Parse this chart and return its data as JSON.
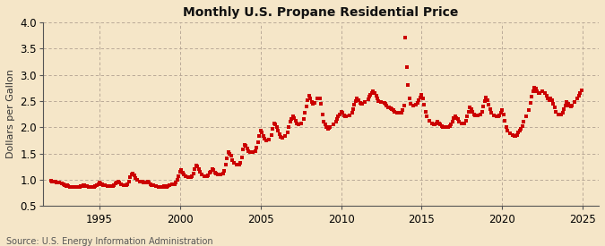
{
  "title": "Monthly U.S. Propane Residential Price",
  "ylabel": "Dollars per Gallon",
  "source": "Source: U.S. Energy Information Administration",
  "outer_bg_color": "#f5e6c8",
  "plot_bg_color": "#f5e6c8",
  "line_color": "#cc0000",
  "ylim": [
    0.5,
    4.0
  ],
  "yticks": [
    0.5,
    1.0,
    1.5,
    2.0,
    2.5,
    3.0,
    3.5,
    4.0
  ],
  "xlim_start": 1991.5,
  "xlim_end": 2026.0,
  "xticks": [
    1995,
    2000,
    2005,
    2010,
    2015,
    2020,
    2025
  ],
  "data": [
    [
      1992.0,
      0.98
    ],
    [
      1992.08,
      0.96
    ],
    [
      1992.17,
      0.97
    ],
    [
      1992.25,
      0.96
    ],
    [
      1992.33,
      0.95
    ],
    [
      1992.5,
      0.95
    ],
    [
      1992.67,
      0.93
    ],
    [
      1992.75,
      0.91
    ],
    [
      1992.83,
      0.9
    ],
    [
      1992.92,
      0.88
    ],
    [
      1993.0,
      0.9
    ],
    [
      1993.08,
      0.88
    ],
    [
      1993.17,
      0.87
    ],
    [
      1993.25,
      0.87
    ],
    [
      1993.33,
      0.87
    ],
    [
      1993.5,
      0.87
    ],
    [
      1993.67,
      0.87
    ],
    [
      1993.75,
      0.87
    ],
    [
      1993.83,
      0.88
    ],
    [
      1993.92,
      0.88
    ],
    [
      1994.0,
      0.9
    ],
    [
      1994.08,
      0.89
    ],
    [
      1994.17,
      0.88
    ],
    [
      1994.25,
      0.88
    ],
    [
      1994.33,
      0.87
    ],
    [
      1994.5,
      0.87
    ],
    [
      1994.67,
      0.87
    ],
    [
      1994.75,
      0.88
    ],
    [
      1994.83,
      0.9
    ],
    [
      1994.92,
      0.92
    ],
    [
      1995.0,
      0.94
    ],
    [
      1995.08,
      0.93
    ],
    [
      1995.17,
      0.91
    ],
    [
      1995.25,
      0.9
    ],
    [
      1995.33,
      0.89
    ],
    [
      1995.5,
      0.88
    ],
    [
      1995.67,
      0.88
    ],
    [
      1995.75,
      0.88
    ],
    [
      1995.83,
      0.88
    ],
    [
      1995.92,
      0.89
    ],
    [
      1996.0,
      0.93
    ],
    [
      1996.08,
      0.95
    ],
    [
      1996.17,
      0.96
    ],
    [
      1996.25,
      0.95
    ],
    [
      1996.33,
      0.92
    ],
    [
      1996.5,
      0.9
    ],
    [
      1996.67,
      0.9
    ],
    [
      1996.75,
      0.92
    ],
    [
      1996.83,
      0.97
    ],
    [
      1996.92,
      1.05
    ],
    [
      1997.0,
      1.1
    ],
    [
      1997.08,
      1.12
    ],
    [
      1997.17,
      1.08
    ],
    [
      1997.25,
      1.04
    ],
    [
      1997.33,
      1.0
    ],
    [
      1997.5,
      0.97
    ],
    [
      1997.67,
      0.96
    ],
    [
      1997.75,
      0.95
    ],
    [
      1997.83,
      0.95
    ],
    [
      1997.92,
      0.95
    ],
    [
      1998.0,
      0.96
    ],
    [
      1998.08,
      0.94
    ],
    [
      1998.17,
      0.92
    ],
    [
      1998.25,
      0.9
    ],
    [
      1998.33,
      0.89
    ],
    [
      1998.5,
      0.88
    ],
    [
      1998.67,
      0.87
    ],
    [
      1998.75,
      0.87
    ],
    [
      1998.83,
      0.87
    ],
    [
      1998.92,
      0.87
    ],
    [
      1999.0,
      0.88
    ],
    [
      1999.08,
      0.87
    ],
    [
      1999.17,
      0.86
    ],
    [
      1999.25,
      0.88
    ],
    [
      1999.33,
      0.9
    ],
    [
      1999.5,
      0.91
    ],
    [
      1999.67,
      0.92
    ],
    [
      1999.75,
      0.95
    ],
    [
      1999.83,
      1.0
    ],
    [
      1999.92,
      1.07
    ],
    [
      2000.0,
      1.15
    ],
    [
      2000.08,
      1.18
    ],
    [
      2000.17,
      1.14
    ],
    [
      2000.25,
      1.1
    ],
    [
      2000.33,
      1.07
    ],
    [
      2000.5,
      1.05
    ],
    [
      2000.67,
      1.05
    ],
    [
      2000.75,
      1.07
    ],
    [
      2000.83,
      1.12
    ],
    [
      2000.92,
      1.2
    ],
    [
      2001.0,
      1.27
    ],
    [
      2001.08,
      1.25
    ],
    [
      2001.17,
      1.2
    ],
    [
      2001.25,
      1.15
    ],
    [
      2001.33,
      1.1
    ],
    [
      2001.5,
      1.07
    ],
    [
      2001.67,
      1.07
    ],
    [
      2001.75,
      1.09
    ],
    [
      2001.83,
      1.13
    ],
    [
      2001.92,
      1.15
    ],
    [
      2002.0,
      1.2
    ],
    [
      2002.08,
      1.18
    ],
    [
      2002.17,
      1.14
    ],
    [
      2002.25,
      1.12
    ],
    [
      2002.33,
      1.1
    ],
    [
      2002.5,
      1.1
    ],
    [
      2002.67,
      1.12
    ],
    [
      2002.75,
      1.17
    ],
    [
      2002.83,
      1.28
    ],
    [
      2002.92,
      1.4
    ],
    [
      2003.0,
      1.52
    ],
    [
      2003.08,
      1.5
    ],
    [
      2003.17,
      1.45
    ],
    [
      2003.25,
      1.38
    ],
    [
      2003.33,
      1.32
    ],
    [
      2003.5,
      1.28
    ],
    [
      2003.67,
      1.28
    ],
    [
      2003.75,
      1.32
    ],
    [
      2003.83,
      1.42
    ],
    [
      2003.92,
      1.57
    ],
    [
      2004.0,
      1.67
    ],
    [
      2004.08,
      1.65
    ],
    [
      2004.17,
      1.6
    ],
    [
      2004.25,
      1.55
    ],
    [
      2004.33,
      1.52
    ],
    [
      2004.5,
      1.52
    ],
    [
      2004.67,
      1.55
    ],
    [
      2004.75,
      1.62
    ],
    [
      2004.83,
      1.72
    ],
    [
      2004.92,
      1.83
    ],
    [
      2005.0,
      1.94
    ],
    [
      2005.08,
      1.9
    ],
    [
      2005.17,
      1.83
    ],
    [
      2005.25,
      1.78
    ],
    [
      2005.33,
      1.75
    ],
    [
      2005.5,
      1.77
    ],
    [
      2005.67,
      1.85
    ],
    [
      2005.75,
      1.97
    ],
    [
      2005.83,
      2.07
    ],
    [
      2005.92,
      2.05
    ],
    [
      2006.0,
      2.0
    ],
    [
      2006.08,
      1.93
    ],
    [
      2006.17,
      1.87
    ],
    [
      2006.25,
      1.82
    ],
    [
      2006.33,
      1.8
    ],
    [
      2006.5,
      1.83
    ],
    [
      2006.67,
      1.9
    ],
    [
      2006.75,
      2.0
    ],
    [
      2006.83,
      2.1
    ],
    [
      2006.92,
      2.15
    ],
    [
      2007.0,
      2.2
    ],
    [
      2007.08,
      2.17
    ],
    [
      2007.17,
      2.12
    ],
    [
      2007.25,
      2.07
    ],
    [
      2007.33,
      2.05
    ],
    [
      2007.5,
      2.07
    ],
    [
      2007.67,
      2.15
    ],
    [
      2007.75,
      2.27
    ],
    [
      2007.83,
      2.4
    ],
    [
      2007.92,
      2.52
    ],
    [
      2008.0,
      2.6
    ],
    [
      2008.08,
      2.55
    ],
    [
      2008.17,
      2.48
    ],
    [
      2008.25,
      2.45
    ],
    [
      2008.33,
      2.47
    ],
    [
      2008.5,
      2.55
    ],
    [
      2008.67,
      2.55
    ],
    [
      2008.75,
      2.45
    ],
    [
      2008.83,
      2.25
    ],
    [
      2008.92,
      2.1
    ],
    [
      2009.0,
      2.05
    ],
    [
      2009.08,
      2.0
    ],
    [
      2009.17,
      1.97
    ],
    [
      2009.25,
      1.98
    ],
    [
      2009.33,
      2.0
    ],
    [
      2009.5,
      2.05
    ],
    [
      2009.67,
      2.1
    ],
    [
      2009.75,
      2.15
    ],
    [
      2009.83,
      2.2
    ],
    [
      2009.92,
      2.25
    ],
    [
      2010.0,
      2.3
    ],
    [
      2010.08,
      2.28
    ],
    [
      2010.17,
      2.23
    ],
    [
      2010.25,
      2.2
    ],
    [
      2010.33,
      2.2
    ],
    [
      2010.5,
      2.22
    ],
    [
      2010.67,
      2.27
    ],
    [
      2010.75,
      2.35
    ],
    [
      2010.83,
      2.43
    ],
    [
      2010.92,
      2.5
    ],
    [
      2011.0,
      2.55
    ],
    [
      2011.08,
      2.52
    ],
    [
      2011.17,
      2.47
    ],
    [
      2011.25,
      2.45
    ],
    [
      2011.33,
      2.45
    ],
    [
      2011.5,
      2.48
    ],
    [
      2011.67,
      2.53
    ],
    [
      2011.75,
      2.58
    ],
    [
      2011.83,
      2.62
    ],
    [
      2011.92,
      2.65
    ],
    [
      2012.0,
      2.68
    ],
    [
      2012.08,
      2.65
    ],
    [
      2012.17,
      2.6
    ],
    [
      2012.25,
      2.55
    ],
    [
      2012.33,
      2.5
    ],
    [
      2012.5,
      2.48
    ],
    [
      2012.67,
      2.47
    ],
    [
      2012.75,
      2.45
    ],
    [
      2012.83,
      2.42
    ],
    [
      2012.92,
      2.38
    ],
    [
      2013.0,
      2.38
    ],
    [
      2013.08,
      2.37
    ],
    [
      2013.17,
      2.35
    ],
    [
      2013.25,
      2.33
    ],
    [
      2013.33,
      2.3
    ],
    [
      2013.5,
      2.28
    ],
    [
      2013.67,
      2.27
    ],
    [
      2013.75,
      2.28
    ],
    [
      2013.83,
      2.33
    ],
    [
      2013.92,
      2.42
    ],
    [
      2014.0,
      3.7
    ],
    [
      2014.08,
      3.15
    ],
    [
      2014.17,
      2.8
    ],
    [
      2014.25,
      2.55
    ],
    [
      2014.33,
      2.45
    ],
    [
      2014.5,
      2.42
    ],
    [
      2014.67,
      2.43
    ],
    [
      2014.75,
      2.47
    ],
    [
      2014.83,
      2.52
    ],
    [
      2014.92,
      2.57
    ],
    [
      2015.0,
      2.62
    ],
    [
      2015.08,
      2.55
    ],
    [
      2015.17,
      2.43
    ],
    [
      2015.25,
      2.3
    ],
    [
      2015.33,
      2.2
    ],
    [
      2015.5,
      2.13
    ],
    [
      2015.67,
      2.08
    ],
    [
      2015.75,
      2.05
    ],
    [
      2015.83,
      2.05
    ],
    [
      2015.92,
      2.07
    ],
    [
      2016.0,
      2.1
    ],
    [
      2016.08,
      2.08
    ],
    [
      2016.17,
      2.05
    ],
    [
      2016.25,
      2.02
    ],
    [
      2016.33,
      2.0
    ],
    [
      2016.5,
      2.0
    ],
    [
      2016.67,
      2.0
    ],
    [
      2016.75,
      2.02
    ],
    [
      2016.83,
      2.05
    ],
    [
      2016.92,
      2.1
    ],
    [
      2017.0,
      2.18
    ],
    [
      2017.08,
      2.2
    ],
    [
      2017.17,
      2.18
    ],
    [
      2017.25,
      2.15
    ],
    [
      2017.33,
      2.1
    ],
    [
      2017.5,
      2.08
    ],
    [
      2017.67,
      2.08
    ],
    [
      2017.75,
      2.12
    ],
    [
      2017.83,
      2.2
    ],
    [
      2017.92,
      2.3
    ],
    [
      2018.0,
      2.38
    ],
    [
      2018.08,
      2.35
    ],
    [
      2018.17,
      2.3
    ],
    [
      2018.25,
      2.25
    ],
    [
      2018.33,
      2.22
    ],
    [
      2018.5,
      2.22
    ],
    [
      2018.67,
      2.25
    ],
    [
      2018.75,
      2.3
    ],
    [
      2018.83,
      2.4
    ],
    [
      2018.92,
      2.5
    ],
    [
      2019.0,
      2.57
    ],
    [
      2019.08,
      2.52
    ],
    [
      2019.17,
      2.43
    ],
    [
      2019.25,
      2.35
    ],
    [
      2019.33,
      2.28
    ],
    [
      2019.5,
      2.22
    ],
    [
      2019.67,
      2.2
    ],
    [
      2019.75,
      2.2
    ],
    [
      2019.83,
      2.23
    ],
    [
      2019.92,
      2.28
    ],
    [
      2020.0,
      2.32
    ],
    [
      2020.08,
      2.25
    ],
    [
      2020.17,
      2.13
    ],
    [
      2020.25,
      2.0
    ],
    [
      2020.33,
      1.93
    ],
    [
      2020.5,
      1.88
    ],
    [
      2020.67,
      1.85
    ],
    [
      2020.75,
      1.83
    ],
    [
      2020.83,
      1.83
    ],
    [
      2020.92,
      1.85
    ],
    [
      2021.0,
      1.9
    ],
    [
      2021.08,
      1.93
    ],
    [
      2021.17,
      1.97
    ],
    [
      2021.25,
      2.02
    ],
    [
      2021.33,
      2.1
    ],
    [
      2021.5,
      2.2
    ],
    [
      2021.67,
      2.33
    ],
    [
      2021.75,
      2.47
    ],
    [
      2021.83,
      2.58
    ],
    [
      2021.92,
      2.68
    ],
    [
      2022.0,
      2.75
    ],
    [
      2022.08,
      2.73
    ],
    [
      2022.17,
      2.68
    ],
    [
      2022.25,
      2.65
    ],
    [
      2022.33,
      2.65
    ],
    [
      2022.5,
      2.68
    ],
    [
      2022.67,
      2.65
    ],
    [
      2022.75,
      2.6
    ],
    [
      2022.83,
      2.55
    ],
    [
      2022.92,
      2.52
    ],
    [
      2023.0,
      2.55
    ],
    [
      2023.08,
      2.52
    ],
    [
      2023.17,
      2.45
    ],
    [
      2023.25,
      2.38
    ],
    [
      2023.33,
      2.3
    ],
    [
      2023.5,
      2.25
    ],
    [
      2023.67,
      2.25
    ],
    [
      2023.75,
      2.28
    ],
    [
      2023.83,
      2.35
    ],
    [
      2023.92,
      2.42
    ],
    [
      2024.0,
      2.48
    ],
    [
      2024.08,
      2.45
    ],
    [
      2024.17,
      2.42
    ],
    [
      2024.25,
      2.4
    ],
    [
      2024.33,
      2.42
    ],
    [
      2024.5,
      2.48
    ],
    [
      2024.67,
      2.55
    ],
    [
      2024.75,
      2.6
    ],
    [
      2024.83,
      2.65
    ],
    [
      2024.92,
      2.7
    ]
  ]
}
